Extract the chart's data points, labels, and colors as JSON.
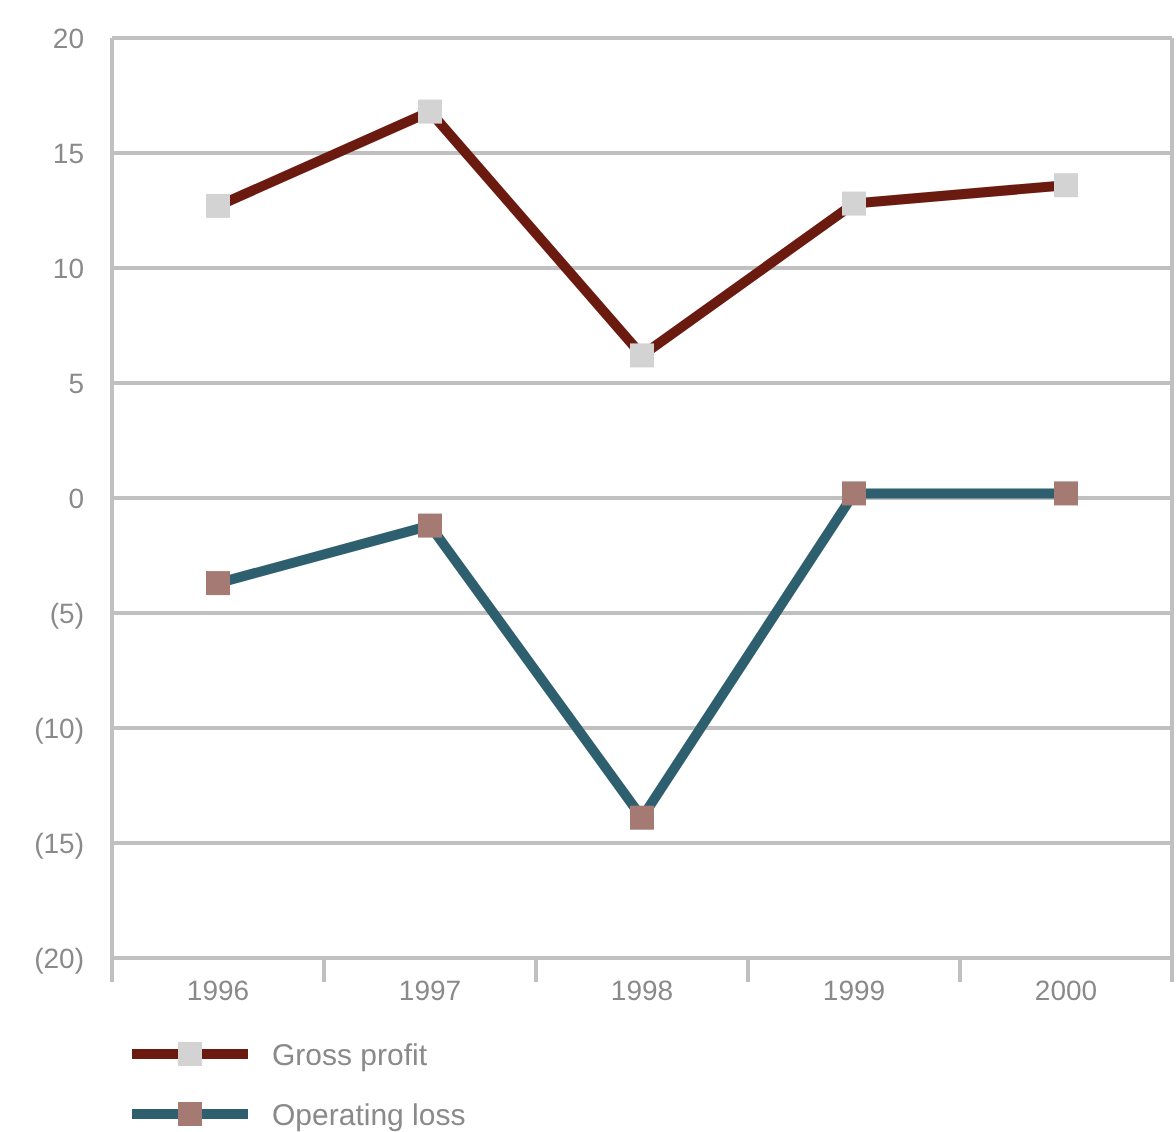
{
  "chart_data": {
    "type": "line",
    "categories": [
      "1996",
      "1997",
      "1998",
      "1999",
      "2000"
    ],
    "series": [
      {
        "name": "Gross profit",
        "color": "#6b1a10",
        "colors": [
          "#d3d3d3",
          "#d3d3d3",
          "#d3d3d3",
          "#d3d3d3",
          "#d3d3d3"
        ],
        "values": [
          12.7,
          16.8,
          6.2,
          12.8,
          13.6
        ]
      },
      {
        "name": "Operating loss",
        "color": "#2e5f6e",
        "colors": [
          "#a57a72",
          "#a57a72",
          "#a57a72",
          "#a57a72",
          "#a57a72"
        ],
        "values": [
          -3.7,
          -1.2,
          -13.9,
          0.2,
          0.2
        ]
      }
    ],
    "ylim": [
      -20,
      20
    ],
    "yticks": [
      {
        "value": -20,
        "label": "(20)"
      },
      {
        "value": -15,
        "label": "(15)"
      },
      {
        "value": -10,
        "label": "(10)"
      },
      {
        "value": -5,
        "label": "(5)"
      },
      0,
      5,
      10,
      15,
      20
    ],
    "grid": "y",
    "legend": "bottom left",
    "marker": "square",
    "line_style": "solid"
  }
}
